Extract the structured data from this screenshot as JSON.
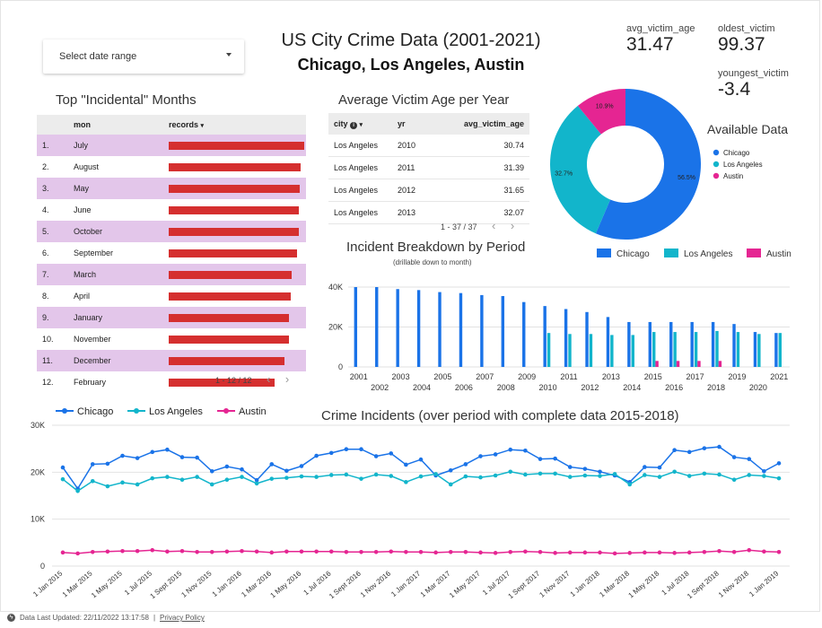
{
  "header": {
    "date_range_label": "Select date range",
    "title": "US City Crime Data (2001-2021)",
    "subtitle": "Chicago, Los Angeles, Austin"
  },
  "scorecards": {
    "avg_label": "avg_victim_age",
    "avg_value": "31.47",
    "oldest_label": "oldest_victim",
    "oldest_value": "99.37",
    "youngest_label": "youngest_victim",
    "youngest_value": "-3.4"
  },
  "months_table": {
    "title": "Top \"Incidental\" Months",
    "col_mon": "mon",
    "col_records": "records",
    "rows": [
      {
        "idx": "1.",
        "mon": "July",
        "frac": 1.0
      },
      {
        "idx": "2.",
        "mon": "August",
        "frac": 0.975
      },
      {
        "idx": "3.",
        "mon": "May",
        "frac": 0.965
      },
      {
        "idx": "4.",
        "mon": "June",
        "frac": 0.96
      },
      {
        "idx": "5.",
        "mon": "October",
        "frac": 0.96
      },
      {
        "idx": "6.",
        "mon": "September",
        "frac": 0.945
      },
      {
        "idx": "7.",
        "mon": "March",
        "frac": 0.91
      },
      {
        "idx": "8.",
        "mon": "April",
        "frac": 0.9
      },
      {
        "idx": "9.",
        "mon": "January",
        "frac": 0.885
      },
      {
        "idx": "10.",
        "mon": "November",
        "frac": 0.885
      },
      {
        "idx": "11.",
        "mon": "December",
        "frac": 0.855
      },
      {
        "idx": "12.",
        "mon": "February",
        "frac": 0.78
      }
    ],
    "pagination": "1 - 12 / 12"
  },
  "age_table": {
    "title": "Average Victim Age per Year",
    "col_city": "city",
    "col_yr": "yr",
    "col_age": "avg_victim_age",
    "rows": [
      {
        "city": "Los Angeles",
        "yr": "2010",
        "age": "30.74"
      },
      {
        "city": "Los Angeles",
        "yr": "2011",
        "age": "31.39"
      },
      {
        "city": "Los Angeles",
        "yr": "2012",
        "age": "31.65"
      },
      {
        "city": "Los Angeles",
        "yr": "2013",
        "age": "32.07"
      }
    ],
    "pagination": "1 - 37 / 37"
  },
  "colors": {
    "chicago": "#1a73e8",
    "los_angeles": "#12b5cb",
    "austin": "#e52592",
    "bar_red": "#d52f2f",
    "row_alt": "#e3c6ea"
  },
  "footer": {
    "updated": "Data Last Updated: 22/11/2022 13:17:58",
    "privacy": "Privacy Policy"
  },
  "chart_data": [
    {
      "type": "pie",
      "title": "Available Data",
      "labels": [
        "Chicago",
        "Los Angeles",
        "Austin"
      ],
      "values": [
        56.5,
        32.7,
        10.9
      ],
      "value_labels": [
        "56.5%",
        "32.7%",
        "10.9%"
      ],
      "legend": "right"
    },
    {
      "type": "bar",
      "title": "Incident Breakdown by Period",
      "subtitle": "(drillable down to month)",
      "categories": [
        "2001",
        "2002",
        "2003",
        "2004",
        "2005",
        "2006",
        "2007",
        "2008",
        "2009",
        "2010",
        "2011",
        "2012",
        "2013",
        "2014",
        "2015",
        "2016",
        "2017",
        "2018",
        "2019",
        "2020",
        "2021"
      ],
      "series": [
        {
          "name": "Chicago",
          "values": [
            40000,
            40000,
            39000,
            38500,
            37500,
            37000,
            36000,
            35500,
            32500,
            30500,
            29000,
            27500,
            25000,
            22500,
            22500,
            22500,
            22500,
            22500,
            21500,
            17500,
            17000
          ]
        },
        {
          "name": "Los Angeles",
          "values": [
            0,
            0,
            0,
            0,
            0,
            0,
            0,
            0,
            0,
            17000,
            16500,
            16500,
            16000,
            16000,
            17500,
            17500,
            17500,
            18000,
            17500,
            16500,
            17000
          ]
        },
        {
          "name": "Austin",
          "values": [
            0,
            0,
            0,
            0,
            0,
            0,
            0,
            0,
            0,
            0,
            0,
            0,
            0,
            0,
            3000,
            3000,
            3000,
            3000,
            0,
            0,
            0
          ]
        }
      ],
      "ylim": [
        0,
        40000
      ],
      "yticks": [
        "0",
        "20K",
        "40K"
      ],
      "legend": "top"
    },
    {
      "type": "line",
      "title": "Crime Incidents (over period with complete data 2015-2018)",
      "x": [
        "1 Jan 2015",
        "1 Feb 2015",
        "1 Mar 2015",
        "1 Apr 2015",
        "1 May 2015",
        "1 Jun 2015",
        "1 Jul 2015",
        "1 Aug 2015",
        "1 Sept 2015",
        "1 Oct 2015",
        "1 Nov 2015",
        "1 Dec 2015",
        "1 Jan 2016",
        "1 Feb 2016",
        "1 Mar 2016",
        "1 Apr 2016",
        "1 May 2016",
        "1 Jun 2016",
        "1 Jul 2016",
        "1 Aug 2016",
        "1 Sept 2016",
        "1 Oct 2016",
        "1 Nov 2016",
        "1 Dec 2016",
        "1 Jan 2017",
        "1 Feb 2017",
        "1 Mar 2017",
        "1 Apr 2017",
        "1 May 2017",
        "1 Jun 2017",
        "1 Jul 2017",
        "1 Aug 2017",
        "1 Sept 2017",
        "1 Oct 2017",
        "1 Nov 2017",
        "1 Dec 2017",
        "1 Jan 2018",
        "1 Feb 2018",
        "1 Mar 2018",
        "1 Apr 2018",
        "1 May 2018",
        "1 Jun 2018",
        "1 Jul 2018",
        "1 Aug 2018",
        "1 Sept 2018",
        "1 Oct 2018",
        "1 Nov 2018",
        "1 Dec 2018",
        "1 Jan 2019"
      ],
      "x_tick_labels": [
        "1 Jan 2015",
        "1 Mar 2015",
        "1 May 2015",
        "1 Jul 2015",
        "1 Sept 2015",
        "1 Nov 2015",
        "1 Jan 2016",
        "1 Mar 2016",
        "1 May 2016",
        "1 Jul 2016",
        "1 Sept 2016",
        "1 Nov 2016",
        "1 Jan 2017",
        "1 Mar 2017",
        "1 May 2017",
        "1 Jul 2017",
        "1 Sept 2017",
        "1 Nov 2017",
        "1 Jan 2018",
        "1 Mar 2018",
        "1 May 2018",
        "1 Jul 2018",
        "1 Sept 2018",
        "1 Nov 2018",
        "1 Jan 2019"
      ],
      "series": [
        {
          "name": "Chicago",
          "values": [
            21000,
            16500,
            21700,
            21800,
            23500,
            23000,
            24300,
            24800,
            23200,
            23100,
            20200,
            21200,
            20600,
            18300,
            21700,
            20300,
            21300,
            23500,
            24100,
            24900,
            24900,
            23400,
            24000,
            21600,
            22700,
            19300,
            20400,
            21700,
            23400,
            23800,
            24800,
            24600,
            22800,
            22900,
            21100,
            20700,
            20100,
            19300,
            17900,
            21100,
            21000,
            24700,
            24300,
            25100,
            25400,
            23200,
            22800,
            20200,
            21900
          ]
        },
        {
          "name": "Los Angeles",
          "values": [
            18500,
            16000,
            18100,
            17000,
            17800,
            17400,
            18700,
            19000,
            18400,
            19000,
            17400,
            18400,
            19000,
            17600,
            18600,
            18800,
            19100,
            19000,
            19400,
            19500,
            18600,
            19500,
            19200,
            17900,
            19100,
            19600,
            17400,
            19100,
            18900,
            19300,
            20100,
            19500,
            19700,
            19700,
            19000,
            19300,
            19200,
            19600,
            17400,
            19400,
            19000,
            20100,
            19200,
            19700,
            19500,
            18400,
            19400,
            19200,
            18700
          ]
        },
        {
          "name": "Austin",
          "values": [
            2900,
            2700,
            3000,
            3100,
            3200,
            3200,
            3400,
            3100,
            3200,
            3000,
            3000,
            3100,
            3200,
            3100,
            2900,
            3100,
            3100,
            3100,
            3100,
            3000,
            3000,
            3000,
            3100,
            3000,
            3000,
            2900,
            3000,
            3000,
            2900,
            2800,
            3000,
            3100,
            3000,
            2800,
            2900,
            2900,
            2900,
            2700,
            2800,
            2900,
            2900,
            2800,
            2900,
            3000,
            3200,
            3000,
            3400,
            3100,
            3000
          ]
        }
      ],
      "ylim": [
        0,
        30000
      ],
      "yticks": [
        "0",
        "10K",
        "20K",
        "30K"
      ],
      "legend": "top-left"
    }
  ]
}
